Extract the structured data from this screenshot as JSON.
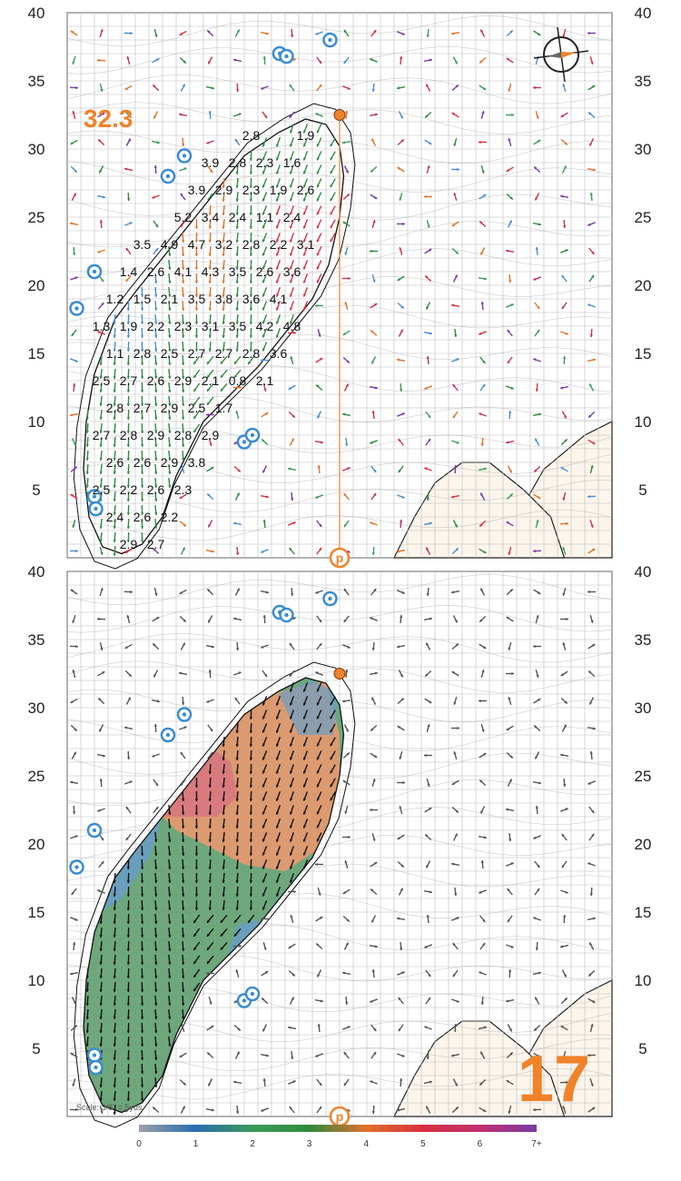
{
  "depth_label": "32.3",
  "hole_number": "17",
  "scale_text": "Scale: 3/8\" = 5yds",
  "pin_marker_glyph": "p",
  "sprinkler_glyph": "o",
  "axis_ticks": [
    "40",
    "35",
    "30",
    "25",
    "20",
    "15",
    "10",
    "5"
  ],
  "legend": {
    "labels": [
      "0",
      "1",
      "2",
      "3",
      "4",
      "5",
      "6",
      "7+"
    ],
    "colors": [
      "#9aa0a8",
      "#2a6eb0",
      "#3a9c5a",
      "#2f8a3e",
      "#e0702a",
      "#d83040",
      "#c03070",
      "#7a3aa0"
    ]
  },
  "colors": {
    "orange": "#f0822a",
    "blue": "#3a8cd0",
    "grid": "#bcbcbc",
    "contour": "#9a9a9a",
    "fill_green": "#5e9e6e",
    "fill_blue": "#6a9ec8",
    "fill_orange": "#e89870",
    "fill_red": "#d87880",
    "cart_path": "#fbf5ec"
  },
  "slope_labels": [
    {
      "v": "2.8",
      "gx": 13.5,
      "gy": 31
    },
    {
      "v": "1.9",
      "gx": 17.5,
      "gy": 31
    },
    {
      "v": "3.9",
      "gx": 10.5,
      "gy": 29
    },
    {
      "v": "2.8",
      "gx": 12.5,
      "gy": 29
    },
    {
      "v": "2.3",
      "gx": 14.5,
      "gy": 29
    },
    {
      "v": "1.6",
      "gx": 16.5,
      "gy": 29
    },
    {
      "v": "3.9",
      "gx": 9.5,
      "gy": 27
    },
    {
      "v": "2.9",
      "gx": 11.5,
      "gy": 27
    },
    {
      "v": "2.3",
      "gx": 13.5,
      "gy": 27
    },
    {
      "v": "1.9",
      "gx": 15.5,
      "gy": 27
    },
    {
      "v": "2.6",
      "gx": 17.5,
      "gy": 27
    },
    {
      "v": "5.2",
      "gx": 8.5,
      "gy": 25
    },
    {
      "v": "3.4",
      "gx": 10.5,
      "gy": 25
    },
    {
      "v": "2.4",
      "gx": 12.5,
      "gy": 25
    },
    {
      "v": "1.1",
      "gx": 14.5,
      "gy": 25
    },
    {
      "v": "2.4",
      "gx": 16.5,
      "gy": 25
    },
    {
      "v": "3.5",
      "gx": 5.5,
      "gy": 23
    },
    {
      "v": "4.9",
      "gx": 7.5,
      "gy": 23
    },
    {
      "v": "4.7",
      "gx": 9.5,
      "gy": 23
    },
    {
      "v": "3.2",
      "gx": 11.5,
      "gy": 23
    },
    {
      "v": "2.8",
      "gx": 13.5,
      "gy": 23
    },
    {
      "v": "2.2",
      "gx": 15.5,
      "gy": 23
    },
    {
      "v": "3.1",
      "gx": 17.5,
      "gy": 23
    },
    {
      "v": "1.4",
      "gx": 4.5,
      "gy": 21
    },
    {
      "v": "2.6",
      "gx": 6.5,
      "gy": 21
    },
    {
      "v": "4.1",
      "gx": 8.5,
      "gy": 21
    },
    {
      "v": "4.3",
      "gx": 10.5,
      "gy": 21
    },
    {
      "v": "3.5",
      "gx": 12.5,
      "gy": 21
    },
    {
      "v": "2.6",
      "gx": 14.5,
      "gy": 21
    },
    {
      "v": "3.6",
      "gx": 16.5,
      "gy": 21
    },
    {
      "v": "1.2",
      "gx": 3.5,
      "gy": 19
    },
    {
      "v": "1.5",
      "gx": 5.5,
      "gy": 19
    },
    {
      "v": "2.1",
      "gx": 7.5,
      "gy": 19
    },
    {
      "v": "3.5",
      "gx": 9.5,
      "gy": 19
    },
    {
      "v": "3.8",
      "gx": 11.5,
      "gy": 19
    },
    {
      "v": "3.6",
      "gx": 13.5,
      "gy": 19
    },
    {
      "v": "4.1",
      "gx": 15.5,
      "gy": 19
    },
    {
      "v": "1.3",
      "gx": 2.5,
      "gy": 17
    },
    {
      "v": "1.9",
      "gx": 4.5,
      "gy": 17
    },
    {
      "v": "2.2",
      "gx": 6.5,
      "gy": 17
    },
    {
      "v": "2.3",
      "gx": 8.5,
      "gy": 17
    },
    {
      "v": "3.1",
      "gx": 10.5,
      "gy": 17
    },
    {
      "v": "3.5",
      "gx": 12.5,
      "gy": 17
    },
    {
      "v": "4.2",
      "gx": 14.5,
      "gy": 17
    },
    {
      "v": "4.8",
      "gx": 16.5,
      "gy": 17
    },
    {
      "v": "1.1",
      "gx": 3.5,
      "gy": 15
    },
    {
      "v": "2.8",
      "gx": 5.5,
      "gy": 15
    },
    {
      "v": "2.5",
      "gx": 7.5,
      "gy": 15
    },
    {
      "v": "2.7",
      "gx": 9.5,
      "gy": 15
    },
    {
      "v": "2.7",
      "gx": 11.5,
      "gy": 15
    },
    {
      "v": "2.8",
      "gx": 13.5,
      "gy": 15
    },
    {
      "v": "3.6",
      "gx": 15.5,
      "gy": 15
    },
    {
      "v": "2.5",
      "gx": 2.5,
      "gy": 13
    },
    {
      "v": "2.7",
      "gx": 4.5,
      "gy": 13
    },
    {
      "v": "2.6",
      "gx": 6.5,
      "gy": 13
    },
    {
      "v": "2.9",
      "gx": 8.5,
      "gy": 13
    },
    {
      "v": "2.1",
      "gx": 10.5,
      "gy": 13
    },
    {
      "v": "0.8",
      "gx": 12.5,
      "gy": 13
    },
    {
      "v": "2.1",
      "gx": 14.5,
      "gy": 13
    },
    {
      "v": "2.8",
      "gx": 3.5,
      "gy": 11
    },
    {
      "v": "2.7",
      "gx": 5.5,
      "gy": 11
    },
    {
      "v": "2.9",
      "gx": 7.5,
      "gy": 11
    },
    {
      "v": "2.5",
      "gx": 9.5,
      "gy": 11
    },
    {
      "v": "1.7",
      "gx": 11.5,
      "gy": 11
    },
    {
      "v": "2.7",
      "gx": 2.5,
      "gy": 9
    },
    {
      "v": "2.8",
      "gx": 4.5,
      "gy": 9
    },
    {
      "v": "2.9",
      "gx": 6.5,
      "gy": 9
    },
    {
      "v": "2.8",
      "gx": 8.5,
      "gy": 9
    },
    {
      "v": "2.9",
      "gx": 10.5,
      "gy": 9
    },
    {
      "v": "2.6",
      "gx": 3.5,
      "gy": 7
    },
    {
      "v": "2.6",
      "gx": 5.5,
      "gy": 7
    },
    {
      "v": "2.9",
      "gx": 7.5,
      "gy": 7
    },
    {
      "v": "3.8",
      "gx": 9.5,
      "gy": 7
    },
    {
      "v": "2.5",
      "gx": 2.5,
      "gy": 5
    },
    {
      "v": "2.2",
      "gx": 4.5,
      "gy": 5
    },
    {
      "v": "2.6",
      "gx": 6.5,
      "gy": 5
    },
    {
      "v": "2.3",
      "gx": 8.5,
      "gy": 5
    },
    {
      "v": "2.4",
      "gx": 3.5,
      "gy": 3
    },
    {
      "v": "2.6",
      "gx": 5.5,
      "gy": 3
    },
    {
      "v": "2.2",
      "gx": 7.5,
      "gy": 3
    },
    {
      "v": "2.9",
      "gx": 4.5,
      "gy": 1
    },
    {
      "v": "2.7",
      "gx": 6.5,
      "gy": 1
    }
  ],
  "sprinklers": [
    {
      "gx": 15.6,
      "gy": 37
    },
    {
      "gx": 16.1,
      "gy": 36.8
    },
    {
      "gx": 19.3,
      "gy": 38
    },
    {
      "gx": 8.6,
      "gy": 29.5
    },
    {
      "gx": 7.4,
      "gy": 28
    },
    {
      "gx": 2.0,
      "gy": 21
    },
    {
      "gx": 0.7,
      "gy": 18.3
    },
    {
      "gx": 13.0,
      "gy": 8.5
    },
    {
      "gx": 13.6,
      "gy": 9.0
    },
    {
      "gx": 2.0,
      "gy": 4.5
    },
    {
      "gx": 2.1,
      "gy": 3.6
    }
  ]
}
